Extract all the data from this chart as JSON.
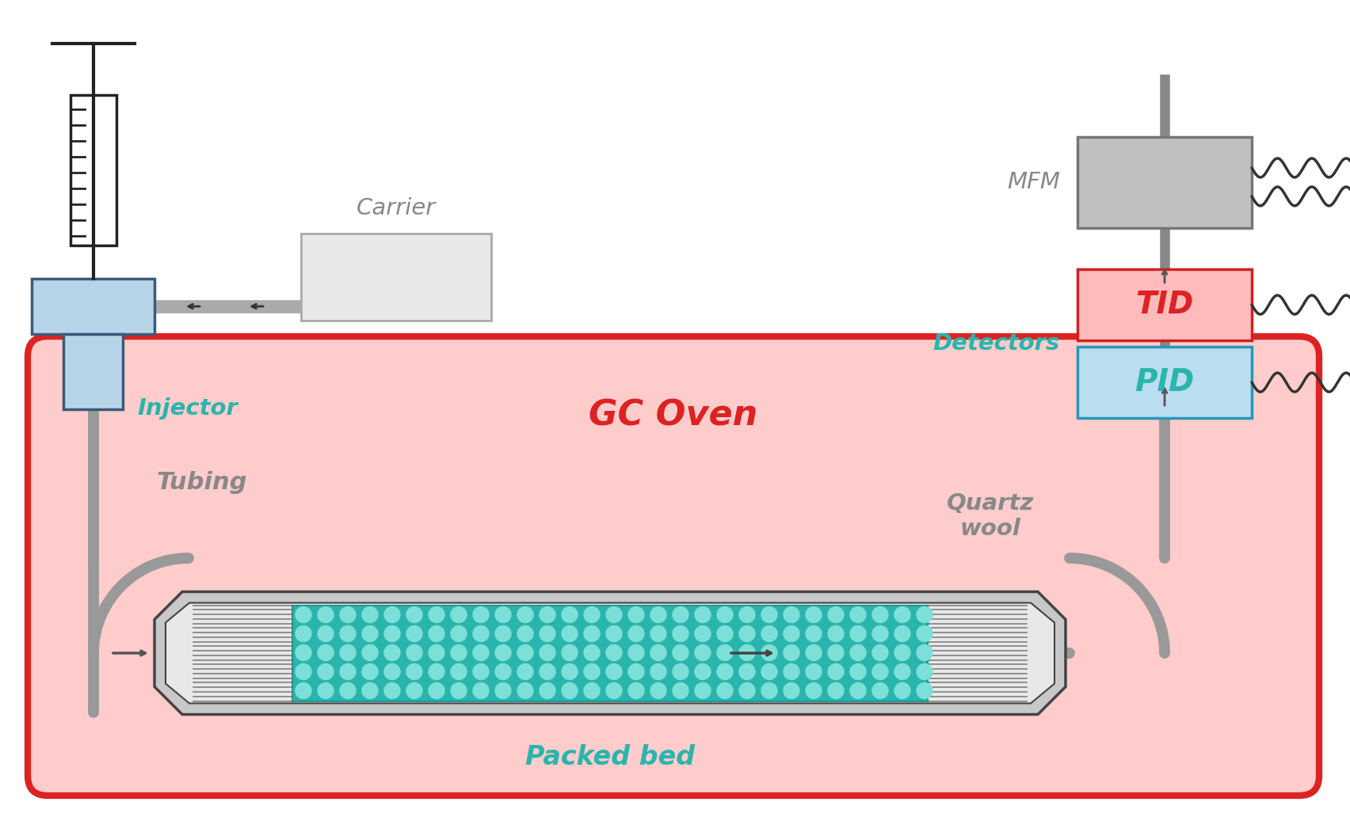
{
  "bg_color": "#ffffff",
  "oven_fill": "#ffcccc",
  "oven_edge": "#dd2222",
  "oven_linewidth": 6,
  "oven_label": "GC Oven",
  "oven_label_color": "#dd2222",
  "oven_label_fontsize": 32,
  "tube_color": "#999999",
  "tube_linewidth": 10,
  "injector_blue": "#b8d4e8",
  "injector_edge": "#3a5a7a",
  "carrier_fill": "#cccccc",
  "carrier_edge": "#888888",
  "teal_color": "#2ab5ac",
  "red_color": "#dd2222",
  "label_injector": "Injector",
  "label_carrier": "Carrier",
  "label_tubing": "Tubing",
  "label_packed": "Packed bed",
  "label_quartz": "Quartz\nwool",
  "label_detectors": "Detectors",
  "label_tid": "TID",
  "label_pid": "PID",
  "label_mfm": "MFM",
  "label_color_gray": "#888888",
  "label_color_white": "#ffffff",
  "packed_teal": "#2ab5ac",
  "packed_dot_color": "#7dd8d4"
}
